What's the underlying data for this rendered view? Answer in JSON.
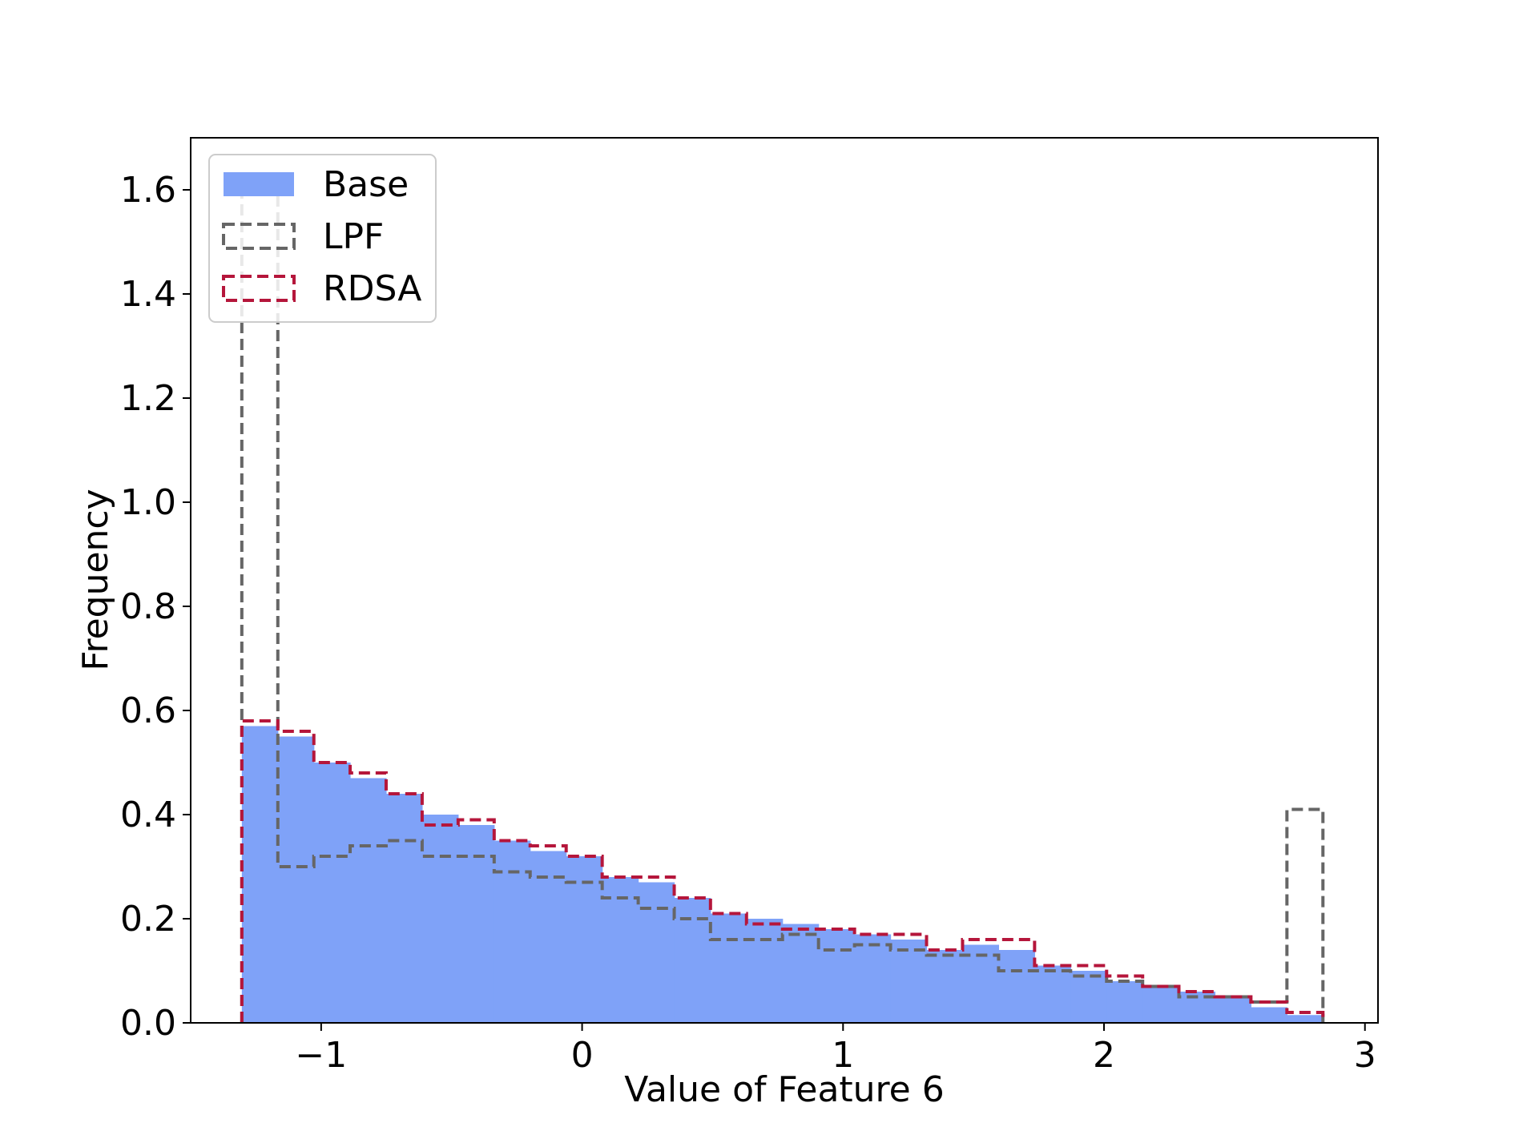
{
  "chart_data": {
    "type": "histogram",
    "title": "",
    "xlabel": "Value of Feature 6",
    "ylabel": "Frequency",
    "xlim": [
      -1.5,
      3.05
    ],
    "ylim": [
      0,
      1.7
    ],
    "xticks": [
      -1,
      0,
      1,
      2,
      3
    ],
    "xtick_labels": [
      "−1",
      "0",
      "1",
      "2",
      "3"
    ],
    "yticks": [
      0.0,
      0.2,
      0.4,
      0.6,
      0.8,
      1.0,
      1.2,
      1.4,
      1.6
    ],
    "ytick_labels": [
      "0.0",
      "0.2",
      "0.4",
      "0.6",
      "0.8",
      "1.0",
      "1.2",
      "1.4",
      "1.6"
    ],
    "grid": false,
    "legend_position": "upper-left",
    "bin_edges": [
      -1.304,
      -1.166,
      -1.028,
      -0.889,
      -0.751,
      -0.613,
      -0.475,
      -0.337,
      -0.199,
      -0.061,
      0.077,
      0.215,
      0.353,
      0.492,
      0.63,
      0.768,
      0.906,
      1.044,
      1.182,
      1.32,
      1.458,
      1.596,
      1.734,
      1.872,
      2.01,
      2.148,
      2.287,
      2.425,
      2.563,
      2.701,
      2.839
    ],
    "series": [
      {
        "name": "Base",
        "style": "filled",
        "color": "#7fa2f8",
        "values": [
          0.57,
          0.55,
          0.5,
          0.47,
          0.44,
          0.4,
          0.38,
          0.35,
          0.33,
          0.32,
          0.28,
          0.27,
          0.24,
          0.21,
          0.2,
          0.19,
          0.18,
          0.17,
          0.16,
          0.14,
          0.15,
          0.14,
          0.11,
          0.1,
          0.08,
          0.07,
          0.06,
          0.05,
          0.03,
          0.015
        ]
      },
      {
        "name": "LPF",
        "style": "dashed-step",
        "color": "#666666",
        "values": [
          1.6,
          0.3,
          0.32,
          0.34,
          0.35,
          0.32,
          0.32,
          0.29,
          0.28,
          0.27,
          0.24,
          0.22,
          0.2,
          0.16,
          0.16,
          0.17,
          0.14,
          0.15,
          0.14,
          0.13,
          0.13,
          0.1,
          0.1,
          0.09,
          0.08,
          0.07,
          0.05,
          0.05,
          0.04,
          0.41
        ]
      },
      {
        "name": "RDSA",
        "style": "dashed-step",
        "color": "#b5163b",
        "values": [
          0.58,
          0.56,
          0.5,
          0.48,
          0.44,
          0.38,
          0.39,
          0.35,
          0.34,
          0.32,
          0.28,
          0.28,
          0.24,
          0.21,
          0.19,
          0.18,
          0.18,
          0.17,
          0.17,
          0.14,
          0.16,
          0.16,
          0.11,
          0.11,
          0.09,
          0.07,
          0.06,
          0.05,
          0.04,
          0.02
        ]
      }
    ]
  }
}
